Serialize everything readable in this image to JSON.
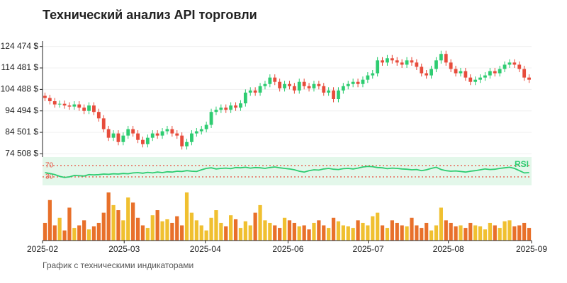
{
  "chart_data": {
    "type": "candlestick",
    "title": "Технический анализ API торговли",
    "footer": "График с техническими индикаторами",
    "up_color": "#2ecc71",
    "down_color": "#e74c3c",
    "xlim": [
      0,
      100
    ],
    "xticks": [
      {
        "value": 0,
        "label": "2025-02"
      },
      {
        "value": 16.7,
        "label": "2025-03"
      },
      {
        "value": 33.3,
        "label": "2025-04"
      },
      {
        "value": 50.2,
        "label": "2025-06"
      },
      {
        "value": 66.6,
        "label": "2025-07"
      },
      {
        "value": 83,
        "label": "2025-08"
      },
      {
        "value": 100,
        "label": "2025-09"
      }
    ],
    "ylim": [
      73000,
      127000
    ],
    "yticks": [
      {
        "value": 74508,
        "label": "74 508 $"
      },
      {
        "value": 84501,
        "label": "84 501 $"
      },
      {
        "value": 94494,
        "label": "94 494 $"
      },
      {
        "value": 104488,
        "label": "104 488 $"
      },
      {
        "value": 114481,
        "label": "114 481 $"
      },
      {
        "value": 124474,
        "label": "124 474 $"
      }
    ],
    "grid": true,
    "open": [
      101500,
      100500,
      99000,
      97500,
      97800,
      97000,
      96500,
      97500,
      96000,
      94500,
      97000,
      94000,
      91000,
      86000,
      82000,
      84000,
      80000,
      83000,
      86000,
      84000,
      81000,
      79000,
      82000,
      84000,
      83000,
      85000,
      86000,
      84000,
      83000,
      78000,
      80000,
      84000,
      85000,
      86000,
      88000,
      94000,
      95000,
      96000,
      95000,
      97000,
      96000,
      98000,
      103000,
      104000,
      103000,
      106000,
      107000,
      110000,
      108000,
      105000,
      107000,
      106000,
      104000,
      108000,
      106000,
      105000,
      107000,
      106000,
      103000,
      104000,
      100000,
      104000,
      106000,
      107000,
      108000,
      107000,
      109000,
      111000,
      112000,
      118000,
      117000,
      119000,
      118000,
      117000,
      116000,
      118000,
      117000,
      115000,
      112000,
      111000,
      114000,
      118000,
      121000,
      117000,
      114000,
      112000,
      113000,
      110000,
      108000,
      109000,
      110000,
      111000,
      113000,
      112000,
      114000,
      116000,
      117000,
      116000,
      114000,
      110000
    ],
    "high": [
      103000,
      102000,
      100500,
      99300,
      99300,
      98500,
      99000,
      99000,
      97500,
      98500,
      98500,
      95500,
      92500,
      87500,
      85500,
      85500,
      84500,
      87500,
      87500,
      85500,
      82500,
      83500,
      85500,
      85500,
      86500,
      87500,
      87500,
      85500,
      84500,
      81500,
      85500,
      86500,
      87500,
      89500,
      95500,
      96500,
      97500,
      97500,
      98500,
      98500,
      99500,
      104500,
      105500,
      105500,
      107500,
      108500,
      111500,
      111500,
      109500,
      108500,
      108500,
      107500,
      109500,
      109500,
      107500,
      108500,
      108500,
      107500,
      105500,
      105500,
      105500,
      107500,
      108500,
      109500,
      109500,
      110500,
      112500,
      113500,
      119500,
      119500,
      120500,
      120500,
      119500,
      118500,
      119500,
      119500,
      118500,
      116500,
      113500,
      115500,
      119500,
      122500,
      122500,
      118500,
      115500,
      114500,
      114500,
      111500,
      110500,
      111500,
      112500,
      114500,
      114500,
      115500,
      117500,
      118500,
      118500,
      117500,
      115500,
      111500
    ],
    "low": [
      99000,
      97500,
      96000,
      96000,
      95500,
      95000,
      95000,
      94500,
      93000,
      93000,
      92500,
      89500,
      84500,
      80500,
      80500,
      78500,
      78500,
      81500,
      82500,
      79500,
      77500,
      77500,
      80500,
      81500,
      81500,
      83500,
      82500,
      81500,
      76500,
      76500,
      78500,
      82500,
      83500,
      84500,
      86500,
      92500,
      93500,
      93500,
      93500,
      94500,
      94500,
      96500,
      101500,
      101500,
      101500,
      104500,
      105500,
      106500,
      103500,
      103500,
      104500,
      102500,
      102500,
      104500,
      103500,
      103500,
      104500,
      101500,
      101500,
      98500,
      98500,
      102500,
      104500,
      105500,
      105500,
      105500,
      107500,
      109500,
      110500,
      115500,
      115500,
      116500,
      115500,
      114500,
      114500,
      115500,
      113500,
      110500,
      109500,
      109500,
      112500,
      116500,
      115500,
      112500,
      110500,
      110500,
      108500,
      106500,
      106500,
      107500,
      108500,
      109500,
      110500,
      110500,
      112500,
      114500,
      114500,
      112500,
      108500,
      107500
    ],
    "close": [
      100500,
      99000,
      97500,
      97800,
      97000,
      96500,
      97500,
      96000,
      94500,
      97000,
      94000,
      91000,
      86000,
      82000,
      84000,
      80000,
      83000,
      86000,
      84000,
      81000,
      79000,
      82000,
      84000,
      83000,
      85000,
      86000,
      84000,
      83000,
      78000,
      80000,
      84000,
      85000,
      86000,
      88000,
      94000,
      95000,
      96000,
      95000,
      97000,
      96000,
      98000,
      103000,
      104000,
      103000,
      106000,
      107000,
      110000,
      108000,
      105000,
      107000,
      106000,
      104000,
      108000,
      106000,
      105000,
      107000,
      106000,
      103000,
      104000,
      100000,
      104000,
      106000,
      107000,
      108000,
      107000,
      109000,
      111000,
      112000,
      118000,
      117000,
      119000,
      118000,
      117000,
      116000,
      118000,
      117000,
      115000,
      112000,
      111000,
      114000,
      118000,
      121000,
      117000,
      114000,
      112000,
      113000,
      110000,
      108000,
      109000,
      110000,
      111000,
      113000,
      112000,
      114000,
      116000,
      117000,
      116000,
      114000,
      110000,
      109000
    ],
    "rsi": {
      "name": "RSI",
      "color": "#2ecc71",
      "band_color": "#e3f7ea",
      "level_color": "#e74c3c",
      "ylim": [
        0,
        100
      ],
      "levels": [
        70,
        30
      ],
      "values": [
        45,
        42,
        38,
        32,
        28,
        30,
        35,
        34,
        33,
        38,
        37,
        38,
        40,
        39,
        41,
        40,
        42,
        41,
        44,
        45,
        43,
        46,
        44,
        47,
        45,
        48,
        47,
        50,
        49,
        52,
        50,
        49,
        55,
        60,
        62,
        58,
        60,
        61,
        59,
        63,
        62,
        64,
        61,
        63,
        62,
        60,
        63,
        65,
        62,
        60,
        58,
        55,
        50,
        47,
        52,
        55,
        54,
        58,
        60,
        57,
        56,
        59,
        60,
        58,
        61,
        65,
        67,
        66,
        63,
        62,
        59,
        61,
        60,
        58,
        57,
        55,
        56,
        52,
        55,
        60,
        64,
        56,
        52,
        50,
        51,
        49,
        47,
        50,
        52,
        55,
        58,
        56,
        57,
        60,
        62,
        64,
        60,
        52,
        44,
        45
      ]
    },
    "volume": {
      "colors": [
        "#f0c030",
        "#e8702a"
      ],
      "values": [
        35,
        80,
        30,
        45,
        20,
        65,
        25,
        30,
        40,
        22,
        28,
        35,
        55,
        95,
        70,
        60,
        40,
        85,
        75,
        45,
        30,
        25,
        50,
        60,
        38,
        42,
        35,
        48,
        30,
        95,
        55,
        40,
        30,
        20,
        45,
        60,
        35,
        28,
        50,
        42,
        25,
        38,
        30,
        55,
        70,
        40,
        35,
        30,
        25,
        45,
        40,
        35,
        28,
        30,
        22,
        35,
        40,
        30,
        25,
        45,
        38,
        30,
        28,
        25,
        40,
        35,
        30,
        48,
        55,
        30,
        25,
        40,
        35,
        30,
        28,
        45,
        30,
        25,
        35,
        20,
        30,
        65,
        40,
        35,
        28,
        30,
        25,
        35,
        30,
        28,
        22,
        35,
        30,
        25,
        38,
        40,
        28,
        30,
        35,
        25
      ]
    }
  }
}
